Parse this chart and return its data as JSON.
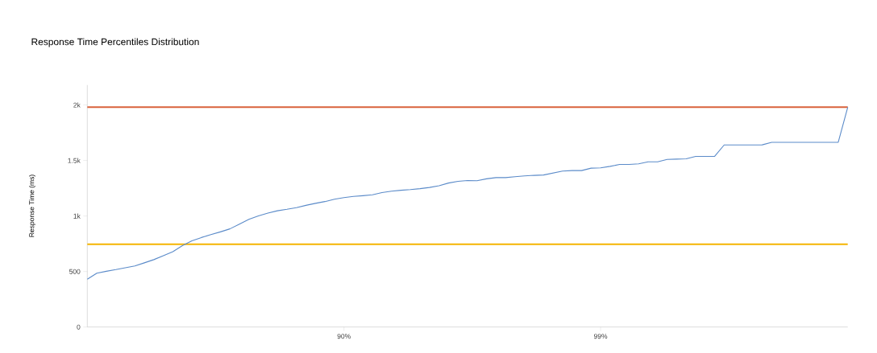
{
  "chart_data": {
    "type": "line",
    "title": "Response Time Percentiles Distribution",
    "ylabel": "Response Time (ms)",
    "categories": [
      null,
      null,
      null,
      null,
      null,
      null,
      null,
      null,
      null,
      null,
      null,
      null,
      null,
      null,
      null,
      null,
      null,
      null,
      null,
      null,
      null,
      null,
      null,
      null,
      null,
      null,
      null,
      "90%",
      null,
      null,
      null,
      null,
      null,
      null,
      null,
      null,
      null,
      null,
      null,
      null,
      null,
      null,
      null,
      null,
      null,
      null,
      null,
      null,
      null,
      null,
      null,
      null,
      null,
      null,
      "99%",
      null,
      null,
      null,
      null,
      null,
      null,
      null,
      null,
      null,
      null,
      null,
      null,
      null,
      null,
      null,
      null,
      null,
      null,
      null,
      null,
      null,
      null,
      null,
      null,
      null,
      null
    ],
    "series": [
      {
        "color": "#5b8bc9",
        "values": [
          430,
          485,
          502,
          517,
          534,
          550,
          578,
          607,
          643,
          679,
          733,
          777,
          806,
          832,
          857,
          884,
          927,
          970,
          1001,
          1026,
          1047,
          1060,
          1075,
          1096,
          1114,
          1130,
          1151,
          1165,
          1176,
          1183,
          1191,
          1211,
          1224,
          1232,
          1238,
          1246,
          1257,
          1272,
          1297,
          1312,
          1320,
          1318,
          1335,
          1346,
          1346,
          1354,
          1361,
          1366,
          1369,
          1387,
          1405,
          1409,
          1409,
          1431,
          1434,
          1447,
          1464,
          1464,
          1470,
          1488,
          1488,
          1510,
          1512,
          1515,
          1537,
          1537,
          1537,
          1640,
          1640,
          1640,
          1640,
          1641,
          1664,
          1664,
          1664,
          1664,
          1664,
          1664,
          1664,
          1664,
          1980
        ]
      }
    ],
    "ylim": [
      0,
      2180
    ],
    "yticks": [
      0,
      500,
      {
        "value": 1000,
        "label": "1k"
      },
      {
        "value": 1500,
        "label": "1.5k"
      },
      {
        "value": 2000,
        "label": "2k"
      }
    ],
    "ref_lines": [
      {
        "axis": "y",
        "value": 1980,
        "color": "#d9623b"
      },
      {
        "axis": "y",
        "value": 745,
        "color": "#f5b400"
      }
    ],
    "grid": false,
    "legend": false,
    "marker": "none",
    "line_style": "solid"
  }
}
